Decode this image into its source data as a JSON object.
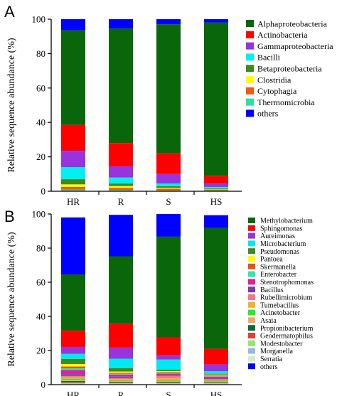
{
  "chart_data": [
    {
      "type": "bar",
      "stacked": true,
      "panel_label": "A",
      "title": "",
      "xlabel": "",
      "ylabel": "Relative sequence abundance  (%)",
      "ylim": [
        0,
        100
      ],
      "yticks": [
        0,
        20,
        40,
        60,
        80,
        100
      ],
      "grid": false,
      "legend_position": "right",
      "categories": [
        "HR",
        "R",
        "S",
        "HS"
      ],
      "series": [
        {
          "name": "Thermomicrobia",
          "color": "#2ee0a0",
          "values": [
            1.0,
            0.8,
            0.5,
            0.3
          ]
        },
        {
          "name": "Cytophagia",
          "color": "#ee5a1a",
          "values": [
            1.5,
            1.2,
            1.0,
            0.5
          ]
        },
        {
          "name": "Clostridia",
          "color": "#ffff00",
          "values": [
            1.5,
            1.0,
            0.5,
            0.3
          ]
        },
        {
          "name": "Betaproteobacteria",
          "color": "#3f8a1f",
          "values": [
            3.0,
            1.5,
            1.0,
            0.5
          ]
        },
        {
          "name": "Bacilli",
          "color": "#00f0f0",
          "values": [
            7.0,
            3.5,
            1.5,
            0.9
          ]
        },
        {
          "name": "Gammaproteobacteria",
          "color": "#9933dd",
          "values": [
            9.5,
            6.5,
            5.5,
            2.0
          ]
        },
        {
          "name": "Actinobacteria",
          "color": "#ff0000",
          "values": [
            15.0,
            13.5,
            12.0,
            4.5
          ]
        },
        {
          "name": "Alphaproteobacteria",
          "color": "#0a660a",
          "values": [
            55.0,
            66.5,
            75.0,
            89.0
          ]
        },
        {
          "name": "others",
          "color": "#0000ff",
          "values": [
            6.5,
            5.5,
            3.0,
            2.0
          ]
        }
      ],
      "legend_order": [
        "Alphaproteobacteria",
        "Actinobacteria",
        "Gammaproteobacteria",
        "Bacilli",
        "Betaproteobacteria",
        "Clostridia",
        "Cytophagia",
        "Thermomicrobia",
        "others"
      ]
    },
    {
      "type": "bar",
      "stacked": true,
      "panel_label": "B",
      "title": "",
      "xlabel": "",
      "ylabel": "Relative sequence abundance  (%)",
      "ylim": [
        0,
        100
      ],
      "yticks": [
        0,
        20,
        40,
        60,
        80,
        100
      ],
      "grid": false,
      "legend_position": "right",
      "categories": [
        "HR",
        "R",
        "S",
        "HS"
      ],
      "series": [
        {
          "name": "Serratia",
          "color": "#d8e8d0",
          "values": [
            0.3,
            0.3,
            0.3,
            0.3
          ]
        },
        {
          "name": "Morganella",
          "color": "#9ab8d8",
          "values": [
            0.3,
            0.3,
            0.3,
            0.3
          ]
        },
        {
          "name": "Modestobacter",
          "color": "#8ee86e",
          "values": [
            0.4,
            0.3,
            0.3,
            0.3
          ]
        },
        {
          "name": "Geodermatophilus",
          "color": "#e83838",
          "values": [
            0.5,
            0.4,
            0.4,
            0.3
          ]
        },
        {
          "name": "Propionibacterium",
          "color": "#0a6a3a",
          "values": [
            0.6,
            0.4,
            0.4,
            0.3
          ]
        },
        {
          "name": "Asaia",
          "color": "#f4a860",
          "values": [
            0.7,
            0.5,
            0.5,
            0.4
          ]
        },
        {
          "name": "Acinetobacter",
          "color": "#2ee82e",
          "values": [
            0.7,
            0.5,
            0.5,
            0.4
          ]
        },
        {
          "name": "Tumebacillus",
          "color": "#f0b030",
          "values": [
            0.8,
            0.6,
            1.0,
            0.4
          ]
        },
        {
          "name": "Rubellimicrobium",
          "color": "#f07888",
          "values": [
            0.8,
            0.6,
            1.5,
            0.5
          ]
        },
        {
          "name": "Bacillus",
          "color": "#7a3aa8",
          "values": [
            1.0,
            0.8,
            0.5,
            0.5
          ]
        },
        {
          "name": "Stenotrophomonas",
          "color": "#e0209a",
          "values": [
            2.5,
            1.2,
            0.8,
            1.0
          ]
        },
        {
          "name": "Enterobacter",
          "color": "#30e8a8",
          "values": [
            1.0,
            0.5,
            0.4,
            0.4
          ]
        },
        {
          "name": "Skermanella",
          "color": "#e8501a",
          "values": [
            1.0,
            0.5,
            0.5,
            0.4
          ]
        },
        {
          "name": "Pantoea",
          "color": "#ffff00",
          "values": [
            1.5,
            0.8,
            0.5,
            0.4
          ]
        },
        {
          "name": "Pseudomonas",
          "color": "#3f8a1f",
          "values": [
            3.0,
            2.0,
            0.8,
            0.5
          ]
        },
        {
          "name": "Microbacterium",
          "color": "#00e8f0",
          "values": [
            3.0,
            5.5,
            6.0,
            1.5
          ]
        },
        {
          "name": "Aureimonas",
          "color": "#9933dd",
          "values": [
            4.0,
            6.5,
            2.5,
            4.0
          ]
        },
        {
          "name": "Sphingomonas",
          "color": "#ff0000",
          "values": [
            9.5,
            14.0,
            10.5,
            9.0
          ]
        },
        {
          "name": "Methylobacterium",
          "color": "#0a660a",
          "values": [
            33.0,
            39.5,
            59.0,
            71.0
          ]
        },
        {
          "name": "others",
          "color": "#0000ff",
          "values": [
            33.4,
            24.3,
            13.3,
            7.4
          ]
        }
      ],
      "legend_order": [
        "Methylobacterium",
        "Sphingomonas",
        "Aureimonas",
        "Microbacterium",
        "Pseudomonas",
        "Pantoea",
        "Skermanella",
        "Enterobacter",
        "Stenotrophomonas",
        "Bacillus",
        "Rubellimicrobium",
        "Tumebacillus",
        "Acinetobacter",
        "Asaia",
        "Propionibacterium",
        "Geodermatophilus",
        "Modestobacter",
        "Morganella",
        "Serratia",
        "others"
      ]
    }
  ]
}
